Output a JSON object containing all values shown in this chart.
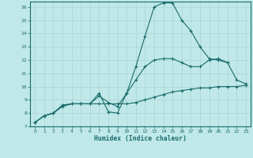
{
  "xlabel": "Humidex (Indice chaleur)",
  "bg_color": "#c0e8e8",
  "line_color": "#1a6b6b",
  "grid_color": "#a8d4d4",
  "xlim": [
    -0.5,
    23.5
  ],
  "ylim": [
    7.0,
    16.4
  ],
  "xticks": [
    0,
    1,
    2,
    3,
    4,
    5,
    6,
    7,
    8,
    9,
    10,
    11,
    12,
    13,
    14,
    15,
    16,
    17,
    18,
    19,
    20,
    21,
    22,
    23
  ],
  "yticks": [
    7,
    8,
    9,
    10,
    11,
    12,
    13,
    14,
    15,
    16
  ],
  "series": [
    {
      "x": [
        0,
        1,
        2,
        3,
        4,
        5,
        6,
        7,
        8,
        9,
        10,
        11,
        12,
        13,
        14,
        15,
        16,
        17,
        18,
        19,
        20,
        21
      ],
      "y": [
        7.3,
        7.8,
        8.0,
        8.6,
        8.7,
        8.7,
        8.7,
        9.5,
        8.1,
        8.0,
        9.5,
        11.5,
        13.8,
        16.0,
        16.3,
        16.3,
        15.0,
        14.2,
        13.0,
        12.1,
        12.0,
        11.8
      ]
    },
    {
      "x": [
        0,
        1,
        2,
        3,
        4,
        5,
        6,
        7,
        8,
        9,
        10,
        11,
        12,
        13,
        14,
        15,
        16,
        17,
        18,
        19,
        20,
        21,
        22,
        23
      ],
      "y": [
        7.3,
        7.8,
        8.0,
        8.6,
        8.7,
        8.7,
        8.7,
        9.3,
        8.8,
        8.5,
        9.5,
        10.5,
        11.5,
        12.0,
        12.1,
        12.1,
        11.8,
        11.5,
        11.5,
        12.0,
        12.1,
        11.8,
        10.5,
        10.2
      ]
    },
    {
      "x": [
        0,
        1,
        2,
        3,
        4,
        5,
        6,
        7,
        8,
        9,
        10,
        11,
        12,
        13,
        14,
        15,
        16,
        17,
        18,
        19,
        20,
        21,
        22,
        23
      ],
      "y": [
        7.3,
        7.8,
        8.0,
        8.5,
        8.7,
        8.7,
        8.7,
        8.7,
        8.7,
        8.7,
        8.7,
        8.8,
        9.0,
        9.2,
        9.4,
        9.6,
        9.7,
        9.8,
        9.9,
        9.9,
        10.0,
        10.0,
        10.0,
        10.1
      ]
    }
  ]
}
